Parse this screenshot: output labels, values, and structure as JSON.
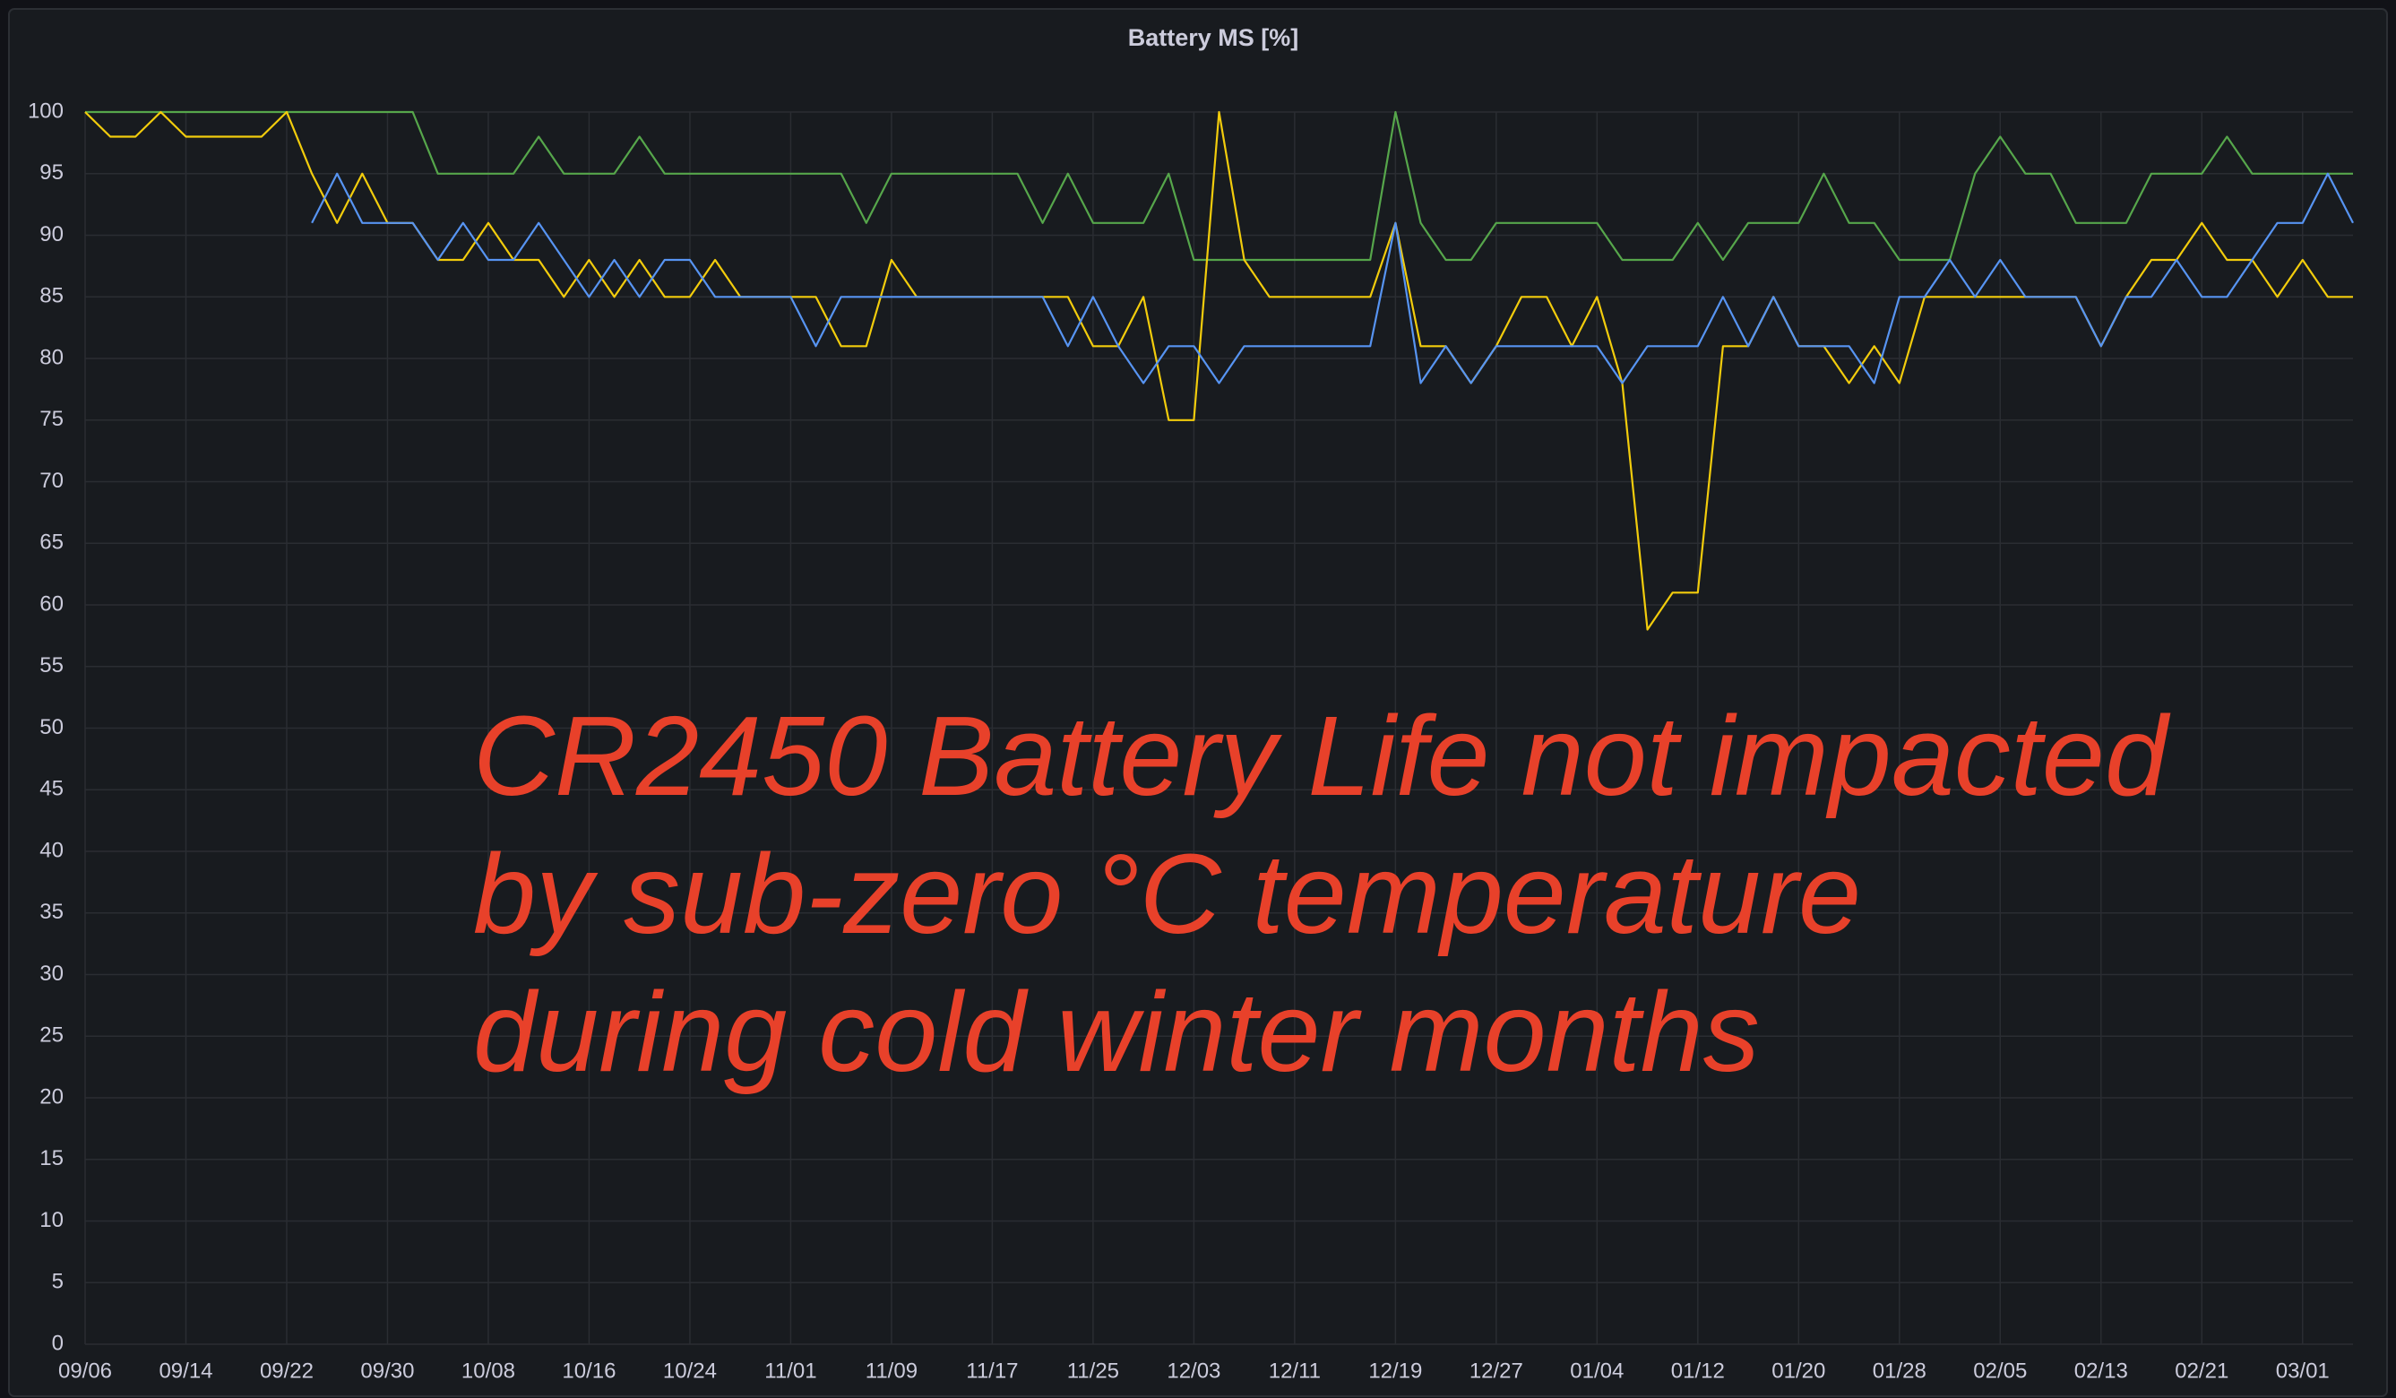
{
  "chart_data": {
    "type": "line",
    "title": "Battery MS [%]",
    "annotation": [
      "CR2450 Battery Life not impacted",
      "by sub-zero °C temperature",
      "during cold winter months"
    ],
    "x": [
      "09/06",
      "09/08",
      "09/10",
      "09/12",
      "09/14",
      "09/16",
      "09/18",
      "09/20",
      "09/22",
      "09/24",
      "09/26",
      "09/28",
      "09/30",
      "10/02",
      "10/04",
      "10/06",
      "10/08",
      "10/10",
      "10/12",
      "10/14",
      "10/16",
      "10/18",
      "10/20",
      "10/22",
      "10/24",
      "10/26",
      "10/28",
      "10/30",
      "11/01",
      "11/03",
      "11/05",
      "11/07",
      "11/09",
      "11/11",
      "11/13",
      "11/15",
      "11/17",
      "11/19",
      "11/21",
      "11/23",
      "11/25",
      "11/27",
      "11/29",
      "12/01",
      "12/03",
      "12/05",
      "12/07",
      "12/09",
      "12/11",
      "12/13",
      "12/15",
      "12/17",
      "12/19",
      "12/21",
      "12/23",
      "12/25",
      "12/27",
      "12/29",
      "12/31",
      "01/02",
      "01/04",
      "01/06",
      "01/08",
      "01/10",
      "01/12",
      "01/14",
      "01/16",
      "01/18",
      "01/20",
      "01/22",
      "01/24",
      "01/26",
      "01/28",
      "01/30",
      "02/01",
      "02/03",
      "02/05",
      "02/07",
      "02/09",
      "02/11",
      "02/13",
      "02/15",
      "02/17",
      "02/19",
      "02/21",
      "02/23",
      "02/25",
      "02/27",
      "03/01",
      "03/03",
      "03/05"
    ],
    "xticks": [
      "09/06",
      "09/14",
      "09/22",
      "09/30",
      "10/08",
      "10/16",
      "10/24",
      "11/01",
      "11/09",
      "11/17",
      "11/25",
      "12/03",
      "12/11",
      "12/19",
      "12/27",
      "01/04",
      "01/12",
      "01/20",
      "01/28",
      "02/05",
      "02/13",
      "02/21",
      "03/01"
    ],
    "series": [
      {
        "color": "#56a64b",
        "values": [
          100,
          100,
          100,
          100,
          100,
          100,
          100,
          100,
          100,
          100,
          100,
          100,
          100,
          100,
          95,
          95,
          95,
          95,
          98,
          95,
          95,
          95,
          98,
          95,
          95,
          95,
          95,
          95,
          95,
          95,
          95,
          91,
          95,
          95,
          95,
          95,
          95,
          95,
          91,
          95,
          91,
          91,
          91,
          95,
          88,
          88,
          88,
          88,
          88,
          88,
          88,
          88,
          100,
          91,
          88,
          88,
          91,
          91,
          91,
          91,
          91,
          88,
          88,
          88,
          91,
          88,
          91,
          91,
          91,
          95,
          91,
          91,
          88,
          88,
          88,
          95,
          98,
          95,
          95,
          91,
          91,
          91,
          95,
          95,
          95,
          98,
          95,
          95,
          95,
          95,
          95
        ]
      },
      {
        "color": "#f2cc0c",
        "values": [
          100,
          98,
          98,
          100,
          98,
          98,
          98,
          98,
          100,
          95,
          91,
          95,
          91,
          91,
          88,
          88,
          91,
          88,
          88,
          85,
          88,
          85,
          88,
          85,
          85,
          88,
          85,
          85,
          85,
          85,
          81,
          81,
          88,
          85,
          85,
          85,
          85,
          85,
          85,
          85,
          81,
          81,
          85,
          75,
          75,
          100,
          88,
          85,
          85,
          85,
          85,
          85,
          91,
          81,
          81,
          78,
          81,
          85,
          85,
          81,
          85,
          78,
          58,
          61,
          61,
          81,
          81,
          85,
          81,
          81,
          78,
          81,
          78,
          85,
          85,
          85,
          85,
          85,
          85,
          85,
          81,
          85,
          88,
          88,
          91,
          88,
          88,
          85,
          88,
          85,
          85
        ]
      },
      {
        "color": "#5794f2",
        "values": [
          null,
          null,
          null,
          null,
          null,
          null,
          null,
          null,
          null,
          91,
          95,
          91,
          91,
          91,
          88,
          91,
          88,
          88,
          91,
          88,
          85,
          88,
          85,
          88,
          88,
          85,
          85,
          85,
          85,
          81,
          85,
          85,
          85,
          85,
          85,
          85,
          85,
          85,
          85,
          81,
          85,
          81,
          78,
          81,
          81,
          78,
          81,
          81,
          81,
          81,
          81,
          81,
          91,
          78,
          81,
          78,
          81,
          81,
          81,
          81,
          81,
          78,
          81,
          81,
          81,
          85,
          81,
          85,
          81,
          81,
          81,
          78,
          85,
          85,
          88,
          85,
          88,
          85,
          85,
          85,
          81,
          85,
          85,
          88,
          85,
          85,
          88,
          91,
          91,
          95,
          91
        ]
      }
    ],
    "ylim": [
      0,
      100
    ],
    "yticks": [
      0,
      5,
      10,
      15,
      20,
      25,
      30,
      35,
      40,
      45,
      50,
      55,
      60,
      65,
      70,
      75,
      80,
      85,
      90,
      95,
      100
    ],
    "grid": true
  }
}
